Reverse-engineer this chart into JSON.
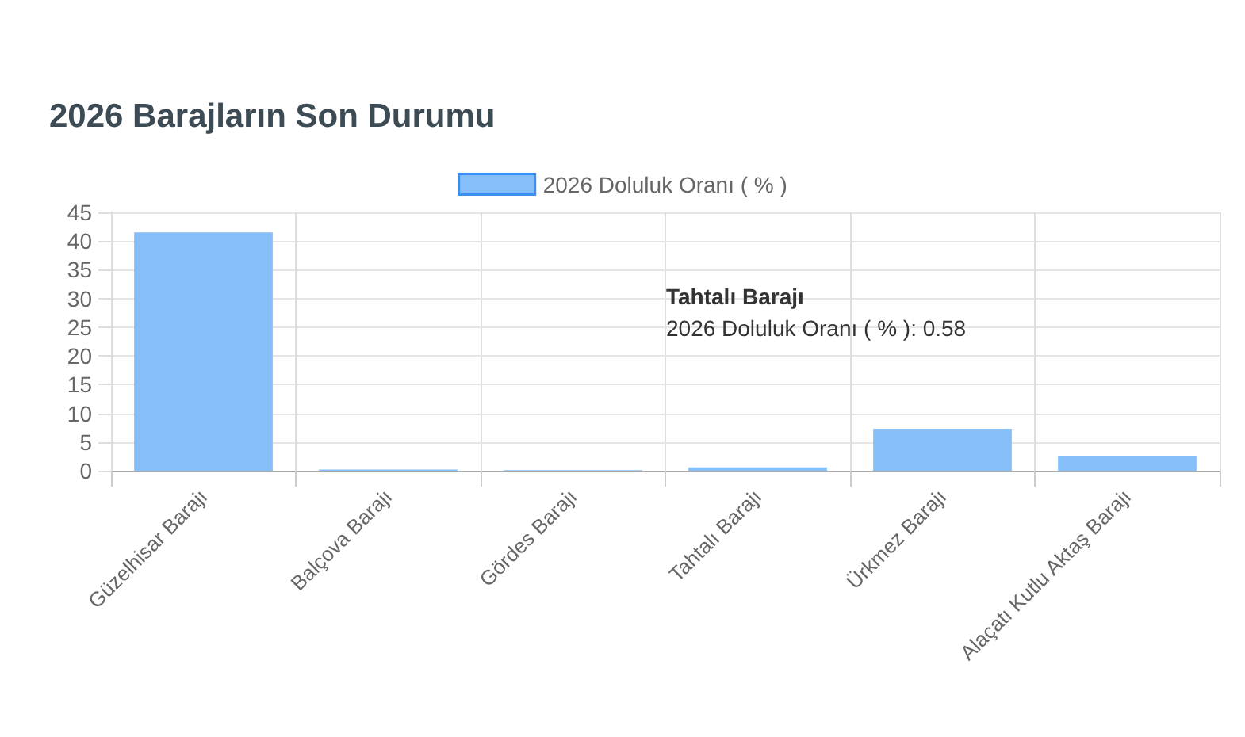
{
  "chart_data": {
    "type": "bar",
    "title": "2026 Barajların Son Durumu",
    "categories": [
      "Güzelhisar Barajı",
      "Balçova Barajı",
      "Gördes Barajı",
      "Tahtalı Barajı",
      "Ürkmez Barajı",
      "Alaçatı Kutlu Aktaş Barajı"
    ],
    "series": [
      {
        "name": "2026 Doluluk Oranı ( % )",
        "color": "#86bff8",
        "values": [
          41.5,
          0.2,
          0.1,
          0.58,
          7.3,
          2.5
        ]
      }
    ],
    "ylim": [
      0,
      45
    ],
    "yticks": [
      0,
      5,
      10,
      15,
      20,
      25,
      30,
      35,
      40,
      45
    ],
    "grid": true,
    "legend": "top",
    "annotations": [
      "Tahtalı Barajı",
      "2026 Doluluk Oranı ( % ): 0.58"
    ]
  }
}
